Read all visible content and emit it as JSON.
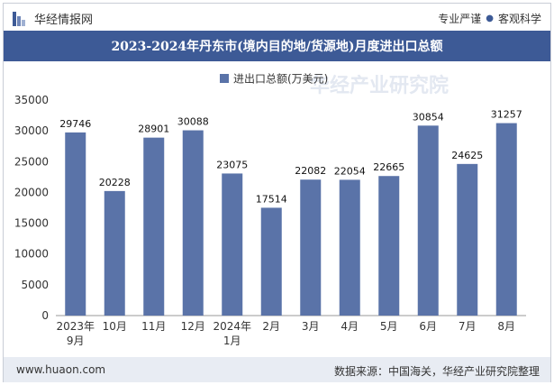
{
  "header": {
    "logo_text": "华经情报网",
    "slogan_left": "专业严谨",
    "slogan_dot": "●",
    "slogan_right": "客观科学"
  },
  "footer": {
    "site": "www.huaon.com",
    "source": "数据来源：中国海关，华经产业研究院整理"
  },
  "colors": {
    "bar": "#5a73a8",
    "title_bg": "#3d5a96",
    "footer_bg": "#e8ecf3"
  },
  "chart_data": {
    "type": "bar",
    "title": "2023-2024年丹东市(境内目的地/货源地)月度进出口总额",
    "legend_position": "top-center",
    "grid": false,
    "ylim": [
      0,
      35000
    ],
    "yticks": [
      0,
      5000,
      10000,
      15000,
      20000,
      25000,
      30000,
      35000
    ],
    "categories": [
      [
        "2023年",
        "9月"
      ],
      [
        "10月"
      ],
      [
        "11月"
      ],
      [
        "12月"
      ],
      [
        "2024年",
        "1月"
      ],
      [
        "2月"
      ],
      [
        "3月"
      ],
      [
        "4月"
      ],
      [
        "5月"
      ],
      [
        "6月"
      ],
      [
        "7月"
      ],
      [
        "8月"
      ]
    ],
    "series": [
      {
        "name": "进出口总额(万美元)",
        "values": [
          29746,
          20228,
          28901,
          30088,
          23075,
          17514,
          22082,
          22054,
          22665,
          30854,
          24625,
          31257
        ]
      }
    ]
  }
}
